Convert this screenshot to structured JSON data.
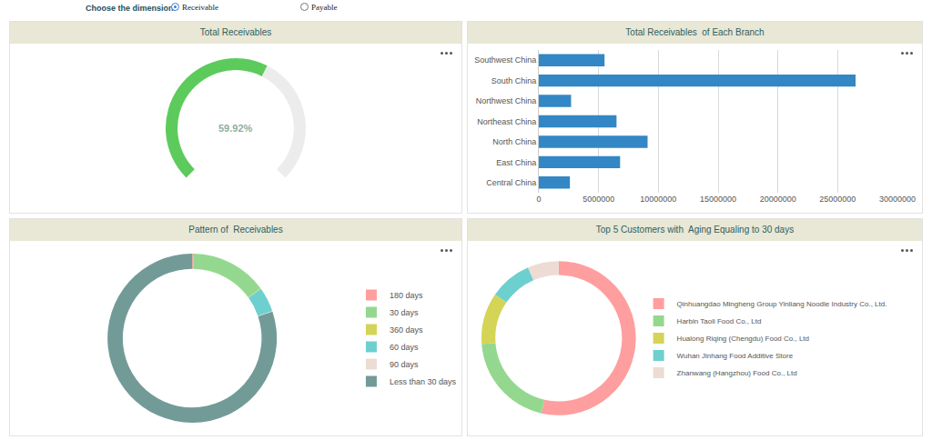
{
  "controls": {
    "label": "Choose the dimension:",
    "options": [
      "Receivable",
      "Payable"
    ],
    "selected": "Receivable"
  },
  "chart_data": [
    {
      "type": "gauge",
      "title": "Total Receivables",
      "values": [
        59.92
      ],
      "value_labels": [
        "59.92%"
      ],
      "data_labels": true,
      "ylim": [
        0,
        100
      ],
      "color": "#5ccb5c"
    },
    {
      "type": "bar",
      "title": "Total Receivables  of Each Branch",
      "orientation": "horizontal",
      "categories": [
        "Southwest China",
        "South China",
        "Northwest China",
        "Northeast China",
        "North China",
        "East China",
        "Central China"
      ],
      "values": [
        5500000,
        26500000,
        2700000,
        6500000,
        9100000,
        6800000,
        2600000
      ],
      "color": "#3387c4",
      "xlim": [
        0,
        30000000
      ],
      "xticks": [
        0,
        5000000,
        10000000,
        15000000,
        20000000,
        25000000,
        30000000
      ],
      "grid": true
    },
    {
      "type": "pie",
      "title": "Pattern of  Receivables",
      "categories": [
        "180 days",
        "30 days",
        "360 days",
        "60 days",
        "90 days",
        "Less than 30 days"
      ],
      "values": [
        0.3,
        14.7,
        0.1,
        4.7,
        0.1,
        80.1
      ],
      "colors": [
        "#ff9e9e",
        "#94d88f",
        "#d4d456",
        "#6ecfcf",
        "#ecdcd3",
        "#729b98"
      ],
      "legend": "right",
      "data_labels": false
    },
    {
      "type": "pie",
      "title": "Top 5 Customers with  Aging Equaling to 30 days",
      "categories": [
        "Qinhuangdao Mingheng Group Yinliang Noodle Industry Co., Ltd.",
        "Harbin Taoli Food Co., Ltd",
        "Hualong Riqing (Chengdu) Food Co., Ltd",
        "Wuhan Jinhang Food Additive Store",
        "Zhanwang (Hangzhou) Food Co., Ltd"
      ],
      "values": [
        53.6,
        20.2,
        10.8,
        8.9,
        6.5
      ],
      "colors": [
        "#ff9e9e",
        "#94d88f",
        "#d4d456",
        "#6ecfcf",
        "#ecdcd3"
      ],
      "legend": "right",
      "data_labels": false
    }
  ]
}
